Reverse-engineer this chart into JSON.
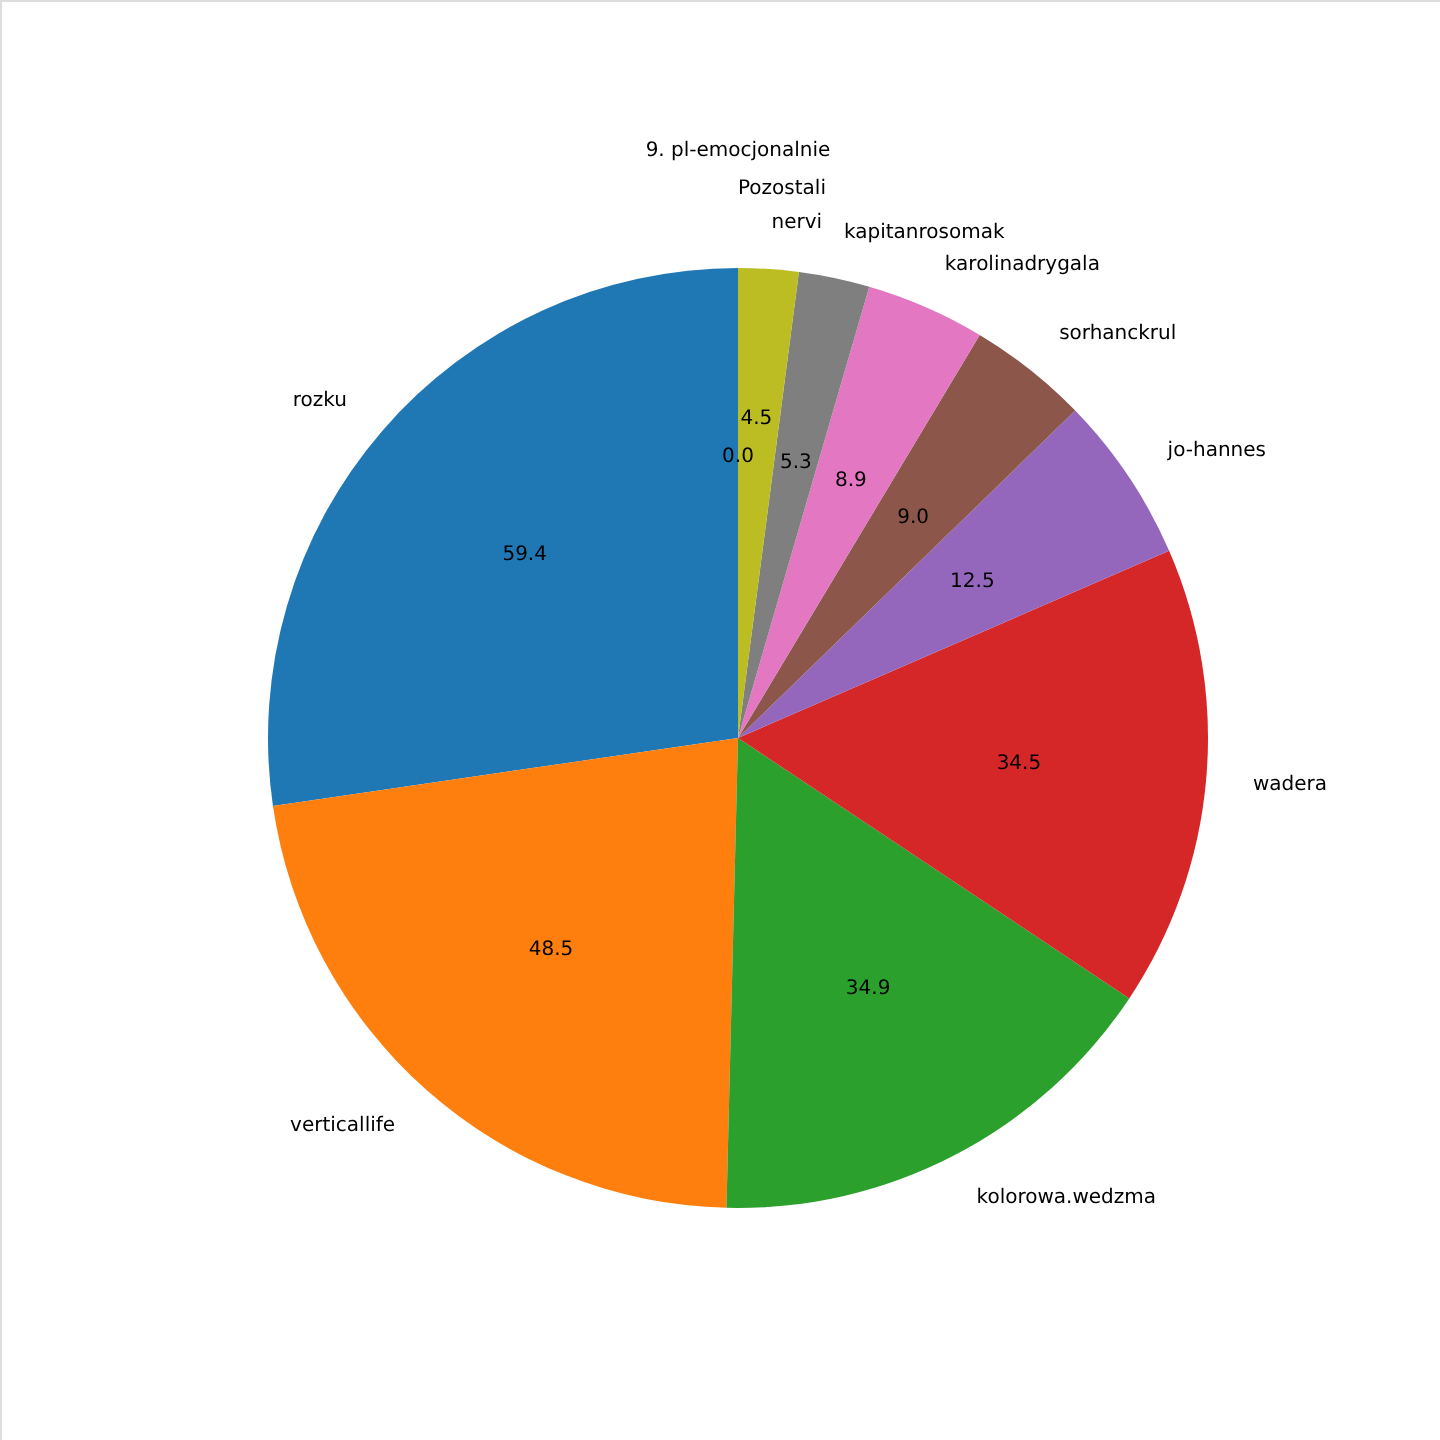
{
  "chart_data": {
    "type": "pie",
    "title": "9. pl-emocjonalnie",
    "categories": [
      "rozku",
      "verticallife",
      "kolorowa.wedzma",
      "wadera",
      "jo-hannes",
      "sorhanckrul",
      "karolinadrygala",
      "kapitanrosomak",
      "nervi",
      "Pozostali"
    ],
    "values": [
      59.4,
      48.5,
      34.9,
      34.5,
      12.5,
      9.0,
      8.9,
      5.3,
      4.5,
      0.0
    ],
    "value_labels": [
      "59.4",
      "48.5",
      "34.9",
      "34.5",
      "12.5",
      "9.0",
      "8.9",
      "5.3",
      "4.5",
      "0.0"
    ],
    "colors": [
      "#1f77b4",
      "#ff7f0e",
      "#2ca02c",
      "#d62728",
      "#9467bd",
      "#8c564b",
      "#e377c2",
      "#7f7f7f",
      "#bcbd22",
      "#17becf"
    ]
  }
}
